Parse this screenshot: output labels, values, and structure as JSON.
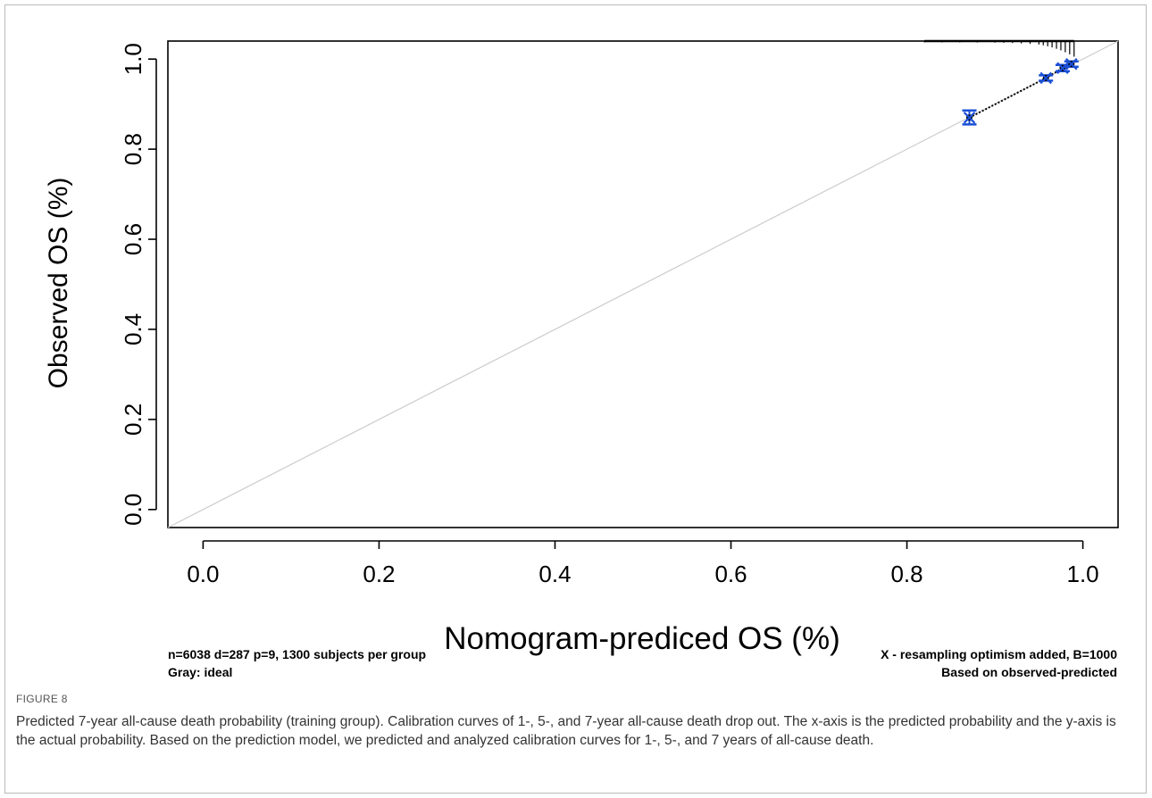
{
  "figure": {
    "label": "FIGURE 8",
    "caption": "Predicted 7-year all-cause death probability (training group). Calibration curves of 1-, 5-, and 7-year all-cause death drop out. The x-axis is the predicted probability and the y-axis is the actual probability. Based on the prediction model, we predicted and analyzed calibration curves for 1-, 5-, and 7 years of all-cause death."
  },
  "chart_data": {
    "type": "scatter",
    "title": "",
    "xlabel": "Nomogram-prediced OS (%)",
    "ylabel": "Observed OS (%)",
    "xlim": [
      -0.04,
      1.04
    ],
    "ylim": [
      -0.04,
      1.04
    ],
    "x_ticks": [
      "0.0",
      "0.2",
      "0.4",
      "0.6",
      "0.8",
      "1.0"
    ],
    "y_ticks": [
      "0.0",
      "0.2",
      "0.4",
      "0.6",
      "0.8",
      "1.0"
    ],
    "grid": false,
    "ideal_line": {
      "from": [
        0,
        0
      ],
      "to": [
        1,
        1
      ],
      "color": "#cccccc"
    },
    "series": [
      {
        "points": [
          {
            "x": 0.871,
            "y": 0.87,
            "lower": 0.855,
            "upper": 0.886
          },
          {
            "x": 0.958,
            "y": 0.958,
            "lower": 0.952,
            "upper": 0.964
          },
          {
            "x": 0.977,
            "y": 0.98,
            "lower": 0.973,
            "upper": 0.987
          },
          {
            "x": 0.987,
            "y": 0.989,
            "lower": 0.983,
            "upper": 0.995
          }
        ],
        "color": "#1a4fd6"
      }
    ],
    "rug_x": [
      0.82,
      0.84,
      0.86,
      0.88,
      0.9,
      0.91,
      0.92,
      0.93,
      0.94,
      0.95,
      0.955,
      0.96,
      0.965,
      0.97,
      0.975,
      0.98,
      0.985,
      0.99
    ],
    "notes": {
      "left_line1": "n=6038 d=287 p=9, 1300 subjects per group",
      "left_line2": "Gray: ideal",
      "right_line1": "X - resampling optimism added, B=1000",
      "right_line2": "Based on observed-predicted"
    }
  }
}
